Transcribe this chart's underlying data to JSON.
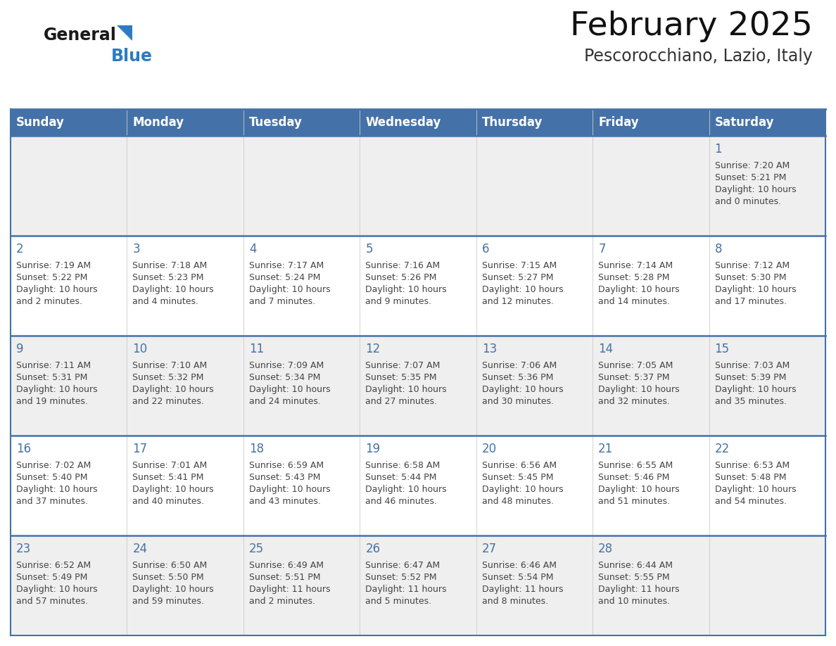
{
  "title": "February 2025",
  "subtitle": "Pescorocchiano, Lazio, Italy",
  "header_bg": "#4472a8",
  "header_text": "#ffffff",
  "row_bg_odd": "#efefef",
  "row_bg_even": "#ffffff",
  "border_color": "#4472a8",
  "day_num_color": "#4472a8",
  "text_color": "#444444",
  "days_of_week": [
    "Sunday",
    "Monday",
    "Tuesday",
    "Wednesday",
    "Thursday",
    "Friday",
    "Saturday"
  ],
  "calendar_data": [
    [
      null,
      null,
      null,
      null,
      null,
      null,
      {
        "day": 1,
        "sunrise": "7:20 AM",
        "sunset": "5:21 PM",
        "daylight": "10 hours",
        "daylight2": "and 0 minutes."
      }
    ],
    [
      {
        "day": 2,
        "sunrise": "7:19 AM",
        "sunset": "5:22 PM",
        "daylight": "10 hours",
        "daylight2": "and 2 minutes."
      },
      {
        "day": 3,
        "sunrise": "7:18 AM",
        "sunset": "5:23 PM",
        "daylight": "10 hours",
        "daylight2": "and 4 minutes."
      },
      {
        "day": 4,
        "sunrise": "7:17 AM",
        "sunset": "5:24 PM",
        "daylight": "10 hours",
        "daylight2": "and 7 minutes."
      },
      {
        "day": 5,
        "sunrise": "7:16 AM",
        "sunset": "5:26 PM",
        "daylight": "10 hours",
        "daylight2": "and 9 minutes."
      },
      {
        "day": 6,
        "sunrise": "7:15 AM",
        "sunset": "5:27 PM",
        "daylight": "10 hours",
        "daylight2": "and 12 minutes."
      },
      {
        "day": 7,
        "sunrise": "7:14 AM",
        "sunset": "5:28 PM",
        "daylight": "10 hours",
        "daylight2": "and 14 minutes."
      },
      {
        "day": 8,
        "sunrise": "7:12 AM",
        "sunset": "5:30 PM",
        "daylight": "10 hours",
        "daylight2": "and 17 minutes."
      }
    ],
    [
      {
        "day": 9,
        "sunrise": "7:11 AM",
        "sunset": "5:31 PM",
        "daylight": "10 hours",
        "daylight2": "and 19 minutes."
      },
      {
        "day": 10,
        "sunrise": "7:10 AM",
        "sunset": "5:32 PM",
        "daylight": "10 hours",
        "daylight2": "and 22 minutes."
      },
      {
        "day": 11,
        "sunrise": "7:09 AM",
        "sunset": "5:34 PM",
        "daylight": "10 hours",
        "daylight2": "and 24 minutes."
      },
      {
        "day": 12,
        "sunrise": "7:07 AM",
        "sunset": "5:35 PM",
        "daylight": "10 hours",
        "daylight2": "and 27 minutes."
      },
      {
        "day": 13,
        "sunrise": "7:06 AM",
        "sunset": "5:36 PM",
        "daylight": "10 hours",
        "daylight2": "and 30 minutes."
      },
      {
        "day": 14,
        "sunrise": "7:05 AM",
        "sunset": "5:37 PM",
        "daylight": "10 hours",
        "daylight2": "and 32 minutes."
      },
      {
        "day": 15,
        "sunrise": "7:03 AM",
        "sunset": "5:39 PM",
        "daylight": "10 hours",
        "daylight2": "and 35 minutes."
      }
    ],
    [
      {
        "day": 16,
        "sunrise": "7:02 AM",
        "sunset": "5:40 PM",
        "daylight": "10 hours",
        "daylight2": "and 37 minutes."
      },
      {
        "day": 17,
        "sunrise": "7:01 AM",
        "sunset": "5:41 PM",
        "daylight": "10 hours",
        "daylight2": "and 40 minutes."
      },
      {
        "day": 18,
        "sunrise": "6:59 AM",
        "sunset": "5:43 PM",
        "daylight": "10 hours",
        "daylight2": "and 43 minutes."
      },
      {
        "day": 19,
        "sunrise": "6:58 AM",
        "sunset": "5:44 PM",
        "daylight": "10 hours",
        "daylight2": "and 46 minutes."
      },
      {
        "day": 20,
        "sunrise": "6:56 AM",
        "sunset": "5:45 PM",
        "daylight": "10 hours",
        "daylight2": "and 48 minutes."
      },
      {
        "day": 21,
        "sunrise": "6:55 AM",
        "sunset": "5:46 PM",
        "daylight": "10 hours",
        "daylight2": "and 51 minutes."
      },
      {
        "day": 22,
        "sunrise": "6:53 AM",
        "sunset": "5:48 PM",
        "daylight": "10 hours",
        "daylight2": "and 54 minutes."
      }
    ],
    [
      {
        "day": 23,
        "sunrise": "6:52 AM",
        "sunset": "5:49 PM",
        "daylight": "10 hours",
        "daylight2": "and 57 minutes."
      },
      {
        "day": 24,
        "sunrise": "6:50 AM",
        "sunset": "5:50 PM",
        "daylight": "10 hours",
        "daylight2": "and 59 minutes."
      },
      {
        "day": 25,
        "sunrise": "6:49 AM",
        "sunset": "5:51 PM",
        "daylight": "11 hours",
        "daylight2": "and 2 minutes."
      },
      {
        "day": 26,
        "sunrise": "6:47 AM",
        "sunset": "5:52 PM",
        "daylight": "11 hours",
        "daylight2": "and 5 minutes."
      },
      {
        "day": 27,
        "sunrise": "6:46 AM",
        "sunset": "5:54 PM",
        "daylight": "11 hours",
        "daylight2": "and 8 minutes."
      },
      {
        "day": 28,
        "sunrise": "6:44 AM",
        "sunset": "5:55 PM",
        "daylight": "11 hours",
        "daylight2": "and 10 minutes."
      },
      null
    ]
  ],
  "logo_general_color": "#1a1a1a",
  "logo_blue_color": "#2e7bc4",
  "title_fontsize": 34,
  "subtitle_fontsize": 17,
  "header_fontsize": 12,
  "day_num_fontsize": 12,
  "cell_text_fontsize": 9
}
